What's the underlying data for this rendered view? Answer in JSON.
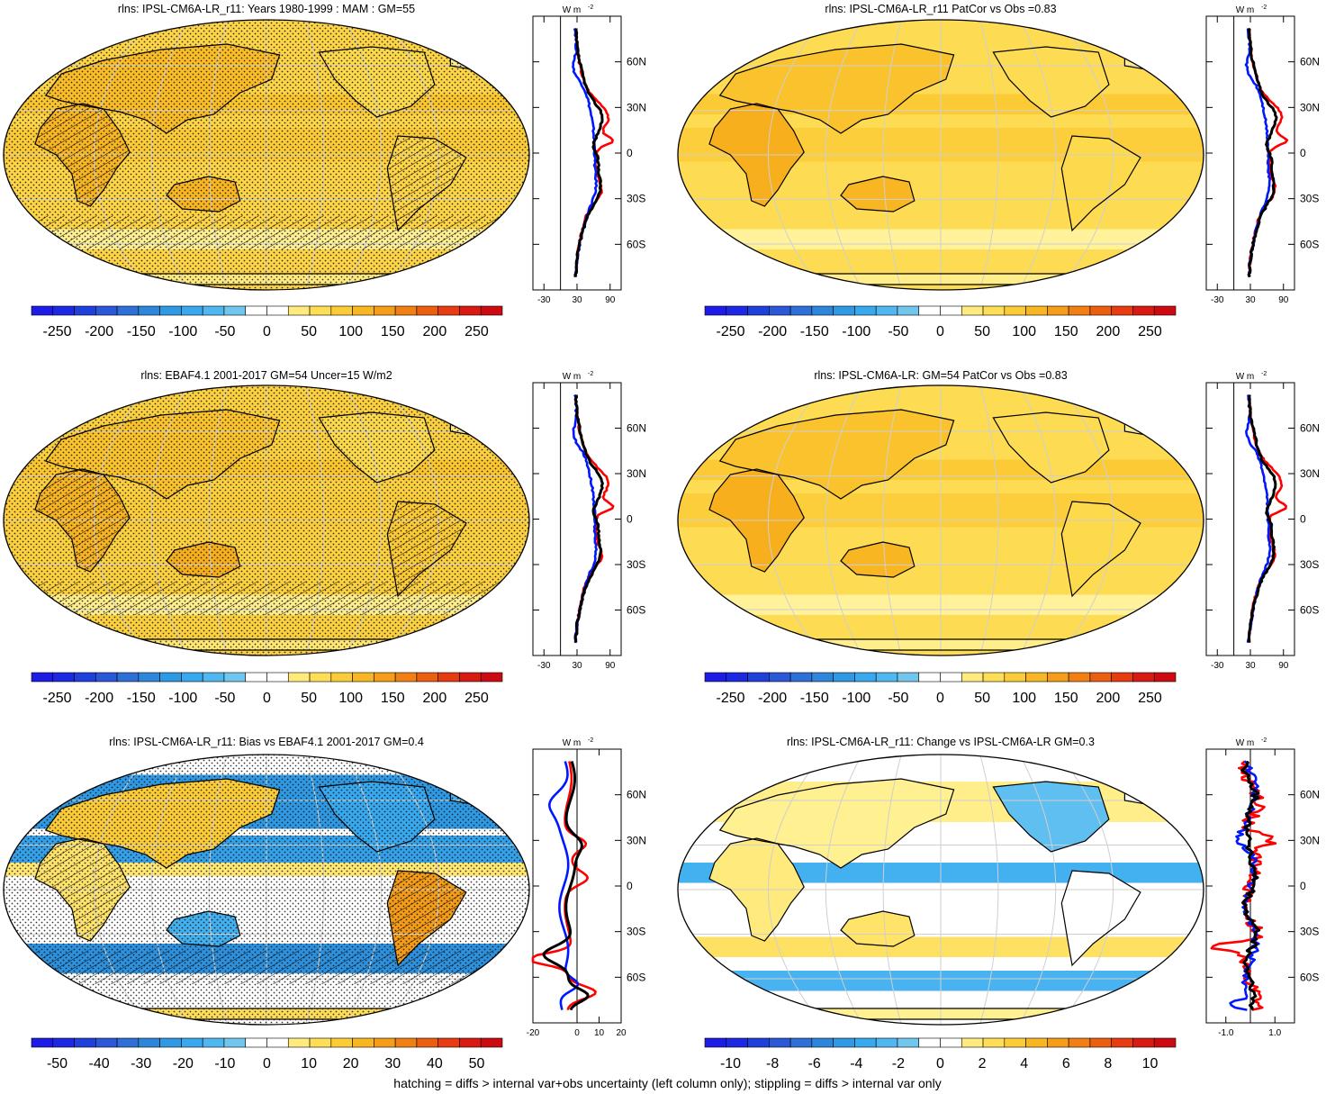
{
  "chart_data": {
    "type": "heatmap",
    "variable": "rlns",
    "units_label": "W m",
    "units_exponent": "-2",
    "lat_labels": [
      "60N",
      "30N",
      "0",
      "30S",
      "60S"
    ],
    "footnote": "hatching = diffs > internal var+obs uncertainty (left column only); stippling = diffs > internal var only",
    "colors": {
      "negative": [
        "#1c1ce6",
        "#1e3cdc",
        "#2b5bd8",
        "#2f7bd6",
        "#2d96e0",
        "#39aaf0",
        "#59bdf0",
        "#8dd0ec"
      ],
      "positive": [
        "#fff29a",
        "#ffe770",
        "#fdd84a",
        "#fbc52e",
        "#f7ad1d",
        "#f39114",
        "#ef7212",
        "#ea5011",
        "#e42a12",
        "#cd0a12"
      ],
      "land_warm": "#f3a535",
      "ocean_mild": "#fbe487",
      "profile_red": "#ff0000",
      "profile_blue": "#0018ff",
      "profile_black": "#000000"
    },
    "panels": [
      {
        "title": "rlns: IPSL-CM6A-LR_r11: Years 1980-1999 : MAM : GM=55",
        "field": "model",
        "colorbar_labels": [
          "-250",
          "-200",
          "-150",
          "-100",
          "-50",
          "0",
          "50",
          "100",
          "150",
          "200",
          "250"
        ],
        "profile_xticks": [
          "-30",
          "30",
          "90"
        ],
        "profile_xlim": [
          -50,
          110
        ],
        "stippling": true,
        "hatching": true
      },
      {
        "title": "rlns: IPSL-CM6A-LR_r11 PatCor vs Obs =0.83",
        "field": "model_smooth",
        "colorbar_labels": [
          "-250",
          "-200",
          "-150",
          "-100",
          "-50",
          "0",
          "50",
          "100",
          "150",
          "200",
          "250"
        ],
        "profile_xticks": [
          "-30",
          "30",
          "90"
        ],
        "profile_xlim": [
          -50,
          110
        ],
        "stippling": false,
        "hatching": false
      },
      {
        "title": "rlns: EBAF4.1 2001-2017 GM=54 Uncer=15 W/m2",
        "field": "obs",
        "colorbar_labels": [
          "-250",
          "-200",
          "-150",
          "-100",
          "-50",
          "0",
          "50",
          "100",
          "150",
          "200",
          "250"
        ],
        "profile_xticks": [
          "-30",
          "30",
          "90"
        ],
        "profile_xlim": [
          -50,
          110
        ],
        "stippling": true,
        "hatching": true
      },
      {
        "title": "rlns: IPSL-CM6A-LR: GM=54 PatCor vs Obs =0.83",
        "field": "model_smooth",
        "colorbar_labels": [
          "-250",
          "-200",
          "-150",
          "-100",
          "-50",
          "0",
          "50",
          "100",
          "150",
          "200",
          "250"
        ],
        "profile_xticks": [
          "-30",
          "30",
          "90"
        ],
        "profile_xlim": [
          -50,
          110
        ],
        "stippling": false,
        "hatching": false
      },
      {
        "title": "rlns: IPSL-CM6A-LR_r11: Bias vs EBAF4.1 2001-2017 GM=0.4",
        "field": "bias",
        "colorbar_labels": [
          "-50",
          "-40",
          "-30",
          "-20",
          "-10",
          "0",
          "10",
          "20",
          "30",
          "40",
          "50"
        ],
        "profile_xticks": [
          "-20",
          "0",
          "10",
          "20"
        ],
        "profile_xlim": [
          -20,
          20
        ],
        "stippling": true,
        "hatching": true
      },
      {
        "title": "rlns: IPSL-CM6A-LR_r11: Change vs IPSL-CM6A-LR GM=0.3",
        "field": "change",
        "colorbar_labels": [
          "-10",
          "-8",
          "-6",
          "-4",
          "-2",
          "0",
          "2",
          "4",
          "6",
          "8",
          "10"
        ],
        "profile_xticks": [
          "-1.0",
          "1.0"
        ],
        "profile_xlim": [
          -1.8,
          1.8
        ],
        "stippling": false,
        "hatching": false
      }
    ]
  }
}
